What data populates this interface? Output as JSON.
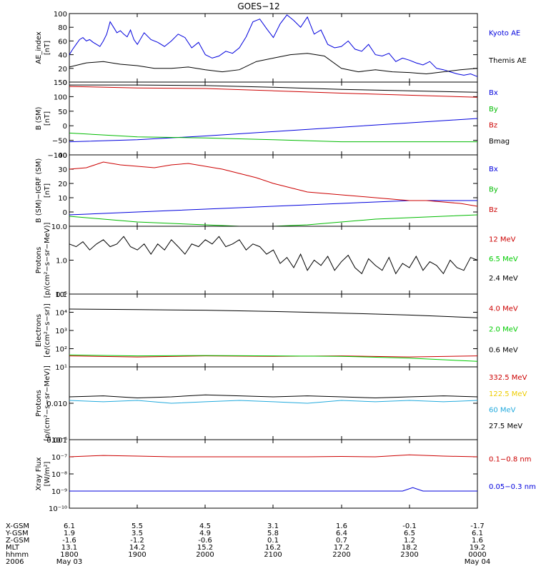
{
  "title": "GOES−12",
  "time_axis": {
    "range": [
      "2006-05-03 18:00",
      "2006-05-04 00:00"
    ],
    "ticks": [
      "1800",
      "1900",
      "2000",
      "2100",
      "2200",
      "2300",
      "0000"
    ]
  },
  "footer": {
    "rows": [
      {
        "label": "X-GSM",
        "values": [
          "6.1",
          "5.5",
          "4.5",
          "3.1",
          "1.6",
          "-0.1",
          "-1.7"
        ]
      },
      {
        "label": "Y-GSM",
        "values": [
          "1.9",
          "3.5",
          "4.9",
          "5.8",
          "6.4",
          "6.5",
          "6.1"
        ]
      },
      {
        "label": "Z-GSM",
        "values": [
          "-1.6",
          "-1.2",
          "-0.6",
          "0.1",
          "0.7",
          "1.2",
          "1.6"
        ]
      },
      {
        "label": "MLT",
        "values": [
          "13.1",
          "14.2",
          "15.2",
          "16.2",
          "17.2",
          "18.2",
          "19.2"
        ]
      },
      {
        "label": "hhmm",
        "values": [
          "1800",
          "1900",
          "2000",
          "2100",
          "2200",
          "2300",
          "0000"
        ]
      }
    ],
    "year": "2006",
    "date_start": "May 03",
    "date_end": "May 04"
  },
  "chart_data": [
    {
      "type": "line",
      "ylabel": [
        "AE_index",
        "[nT]"
      ],
      "scale": "linear",
      "ylim": [
        0,
        100
      ],
      "yticks": [
        "0",
        "20",
        "40",
        "60",
        "80",
        "100"
      ],
      "legend_placement": "right",
      "series": [
        {
          "name": "Kyoto AE",
          "color": "#0000dd",
          "x": [
            0,
            0.05,
            0.1,
            0.15,
            0.2,
            0.25,
            0.3,
            0.35,
            0.4,
            0.45,
            0.5,
            0.55,
            0.6,
            0.65,
            0.7,
            0.75,
            0.8,
            0.85,
            0.9,
            0.95,
            1.0,
            1.1,
            1.2,
            1.3,
            1.4,
            1.5,
            1.6,
            1.7,
            1.8,
            1.9,
            2.0,
            2.1,
            2.2,
            2.3,
            2.4,
            2.5,
            2.6,
            2.7,
            2.8,
            2.9,
            3.0,
            3.1,
            3.2,
            3.3,
            3.4,
            3.5,
            3.6,
            3.7,
            3.8,
            3.9,
            4.0,
            4.1,
            4.2,
            4.3,
            4.4,
            4.5,
            4.6,
            4.7,
            4.8,
            4.9,
            5.0,
            5.1,
            5.2,
            5.3,
            5.4,
            5.5,
            5.6,
            5.7,
            5.8,
            5.9,
            6.0
          ],
          "values": [
            40,
            48,
            55,
            62,
            65,
            60,
            62,
            58,
            55,
            52,
            60,
            70,
            88,
            80,
            72,
            75,
            70,
            66,
            76,
            62,
            55,
            72,
            62,
            58,
            52,
            60,
            70,
            65,
            50,
            58,
            40,
            35,
            38,
            45,
            42,
            50,
            66,
            88,
            92,
            78,
            65,
            85,
            98,
            90,
            80,
            95,
            70,
            76,
            55,
            50,
            52,
            60,
            48,
            45,
            55,
            40,
            38,
            42,
            30,
            35,
            32,
            28,
            25,
            30,
            20,
            18,
            15,
            12,
            10,
            12,
            8
          ]
        },
        {
          "name": "Themis AE",
          "color": "#000000",
          "x": [
            0,
            0.25,
            0.5,
            0.75,
            1.0,
            1.25,
            1.5,
            1.75,
            2.0,
            2.25,
            2.5,
            2.75,
            3.0,
            3.25,
            3.5,
            3.75,
            4.0,
            4.25,
            4.5,
            4.75,
            5.0,
            5.25,
            5.5,
            5.75,
            6.0
          ],
          "values": [
            22,
            28,
            30,
            26,
            24,
            20,
            20,
            22,
            18,
            15,
            18,
            30,
            35,
            40,
            42,
            38,
            20,
            15,
            18,
            15,
            14,
            12,
            15,
            18,
            20
          ]
        }
      ]
    },
    {
      "type": "line",
      "ylabel": [
        "B (SM)",
        "[nT]"
      ],
      "scale": "linear",
      "ylim": [
        -100,
        150
      ],
      "yticks": [
        "−100",
        "−50",
        "0",
        "50",
        "100",
        "150"
      ],
      "legend_placement": "right",
      "series": [
        {
          "name": "Bx",
          "color": "#0000dd",
          "x": [
            0,
            1,
            2,
            3,
            4,
            5,
            6
          ],
          "values": [
            -55,
            -48,
            -35,
            -20,
            -5,
            10,
            25
          ]
        },
        {
          "name": "By",
          "color": "#00bb00",
          "x": [
            0,
            1,
            2,
            3,
            4,
            5,
            6
          ],
          "values": [
            -25,
            -38,
            -42,
            -48,
            -55,
            -55,
            -55
          ]
        },
        {
          "name": "Bz",
          "color": "#cc0000",
          "x": [
            0,
            1,
            2,
            3,
            4,
            5,
            6
          ],
          "values": [
            135,
            130,
            128,
            120,
            112,
            105,
            98
          ]
        },
        {
          "name": "Bmag",
          "color": "#000000",
          "x": [
            0,
            1,
            2,
            3,
            4,
            5,
            6
          ],
          "values": [
            140,
            140,
            138,
            132,
            125,
            120,
            115
          ]
        }
      ]
    },
    {
      "type": "line",
      "ylabel": [
        "B (SM)−IGRF (SM)",
        "[nT]"
      ],
      "scale": "linear",
      "ylim": [
        -10,
        40
      ],
      "yticks": [
        "0",
        "10",
        "20",
        "30",
        "40"
      ],
      "legend_placement": "right",
      "series": [
        {
          "name": "Bx",
          "color": "#0000dd",
          "x": [
            0,
            0.5,
            1,
            1.5,
            2,
            2.5,
            3,
            3.5,
            4,
            4.5,
            5,
            5.5,
            6
          ],
          "values": [
            -2,
            -1,
            0,
            1,
            2,
            3,
            4,
            5,
            6,
            7,
            8,
            8,
            8
          ]
        },
        {
          "name": "By",
          "color": "#00bb00",
          "x": [
            0,
            0.5,
            1,
            1.5,
            2,
            2.5,
            3,
            3.5,
            4,
            4.5,
            5,
            5.5,
            6
          ],
          "values": [
            -3,
            -5,
            -7,
            -8,
            -9,
            -10,
            -10,
            -9,
            -7,
            -5,
            -4,
            -3,
            -2
          ]
        },
        {
          "name": "Bz",
          "color": "#cc0000",
          "x": [
            0,
            0.25,
            0.5,
            0.75,
            1,
            1.25,
            1.5,
            1.75,
            2,
            2.25,
            2.5,
            2.75,
            3,
            3.25,
            3.5,
            3.75,
            4,
            4.25,
            4.5,
            4.75,
            5,
            5.25,
            5.5,
            5.75,
            6
          ],
          "values": [
            30,
            31,
            35,
            33,
            32,
            31,
            33,
            34,
            32,
            30,
            27,
            24,
            20,
            17,
            14,
            13,
            12,
            11,
            10,
            9,
            8,
            8,
            7,
            6,
            4
          ]
        }
      ]
    },
    {
      "type": "line",
      "ylabel": [
        "Protons",
        "[p/(cm²−s−sr−MeV)]"
      ],
      "scale": "log",
      "ylim": [
        0.1,
        10
      ],
      "yticks": [
        "0.1",
        "1.0",
        "10.0"
      ],
      "legend_placement": "right",
      "series": [
        {
          "name": "12 MeV",
          "color": "#cc0000",
          "x": [],
          "values": []
        },
        {
          "name": "6.5 MeV",
          "color": "#00cc00",
          "x": [],
          "values": []
        },
        {
          "name": "2.4 MeV",
          "color": "#000000",
          "x": [
            0,
            0.1,
            0.2,
            0.3,
            0.4,
            0.5,
            0.6,
            0.7,
            0.8,
            0.9,
            1.0,
            1.1,
            1.2,
            1.3,
            1.4,
            1.5,
            1.6,
            1.7,
            1.8,
            1.9,
            2.0,
            2.1,
            2.2,
            2.3,
            2.4,
            2.5,
            2.6,
            2.7,
            2.8,
            2.9,
            3.0,
            3.1,
            3.2,
            3.3,
            3.4,
            3.5,
            3.6,
            3.7,
            3.8,
            3.9,
            4.0,
            4.1,
            4.2,
            4.3,
            4.4,
            4.5,
            4.6,
            4.7,
            4.8,
            4.9,
            5.0,
            5.1,
            5.2,
            5.3,
            5.4,
            5.5,
            5.6,
            5.7,
            5.8,
            5.9,
            6.0
          ],
          "values": [
            3,
            2.5,
            3.5,
            2,
            3,
            4,
            2.5,
            3,
            5,
            2.5,
            2,
            3,
            1.5,
            3,
            2,
            4,
            2.5,
            1.5,
            3,
            2.5,
            4,
            3,
            5,
            2.5,
            3,
            4,
            2,
            3,
            2.5,
            1.5,
            2,
            0.8,
            1.2,
            0.6,
            1.5,
            0.5,
            1,
            0.7,
            1.3,
            0.5,
            0.9,
            1.4,
            0.6,
            0.4,
            1.1,
            0.7,
            0.5,
            1.2,
            0.4,
            0.8,
            0.6,
            1.3,
            0.5,
            0.9,
            0.7,
            0.4,
            1.0,
            0.6,
            0.5,
            1.2,
            1.0
          ]
        }
      ]
    },
    {
      "type": "line",
      "ylabel": [
        "Electrons",
        "[e/(cm²−s−sr)]"
      ],
      "scale": "log",
      "ylim": [
        10,
        100000
      ],
      "yticks": [
        "10¹",
        "10²",
        "10³",
        "10⁴",
        "10⁵"
      ],
      "legend_placement": "right",
      "series": [
        {
          "name": "4.0 MeV",
          "color": "#cc0000",
          "x": [
            0,
            1,
            2,
            3,
            4,
            5,
            6
          ],
          "values": [
            40,
            35,
            40,
            38,
            40,
            35,
            40
          ]
        },
        {
          "name": "2.0 MeV",
          "color": "#00cc00",
          "x": [
            0,
            1,
            2,
            3,
            4,
            5,
            6
          ],
          "values": [
            45,
            40,
            42,
            40,
            38,
            30,
            20
          ]
        },
        {
          "name": "0.6 MeV",
          "color": "#000000",
          "x": [
            0,
            0.5,
            1,
            1.5,
            2,
            2.5,
            3,
            3.5,
            4,
            4.5,
            5,
            5.5,
            6
          ],
          "values": [
            15000,
            14500,
            14000,
            13500,
            13000,
            12000,
            11000,
            10000,
            9000,
            8000,
            7000,
            6000,
            5000
          ]
        }
      ]
    },
    {
      "type": "line",
      "ylabel": [
        "Protons",
        "[p/(cm²−s−sr−MeV)]"
      ],
      "scale": "log",
      "ylim": [
        0.001,
        0.1
      ],
      "yticks": [
        "0.001",
        "0.010"
      ],
      "legend_placement": "right",
      "series": [
        {
          "name": "332.5 MeV",
          "color": "#cc0000",
          "x": [],
          "values": []
        },
        {
          "name": "122.5 MeV",
          "color": "#eecc00",
          "x": [],
          "values": []
        },
        {
          "name": "60 MeV",
          "color": "#22aadd",
          "x": [
            0,
            0.5,
            1,
            1.5,
            2,
            2.5,
            3,
            3.5,
            4,
            4.5,
            5,
            5.5,
            6
          ],
          "values": [
            0.012,
            0.011,
            0.012,
            0.01,
            0.011,
            0.012,
            0.011,
            0.01,
            0.012,
            0.011,
            0.012,
            0.011,
            0.012
          ]
        },
        {
          "name": "27.5 MeV",
          "color": "#000000",
          "x": [
            0,
            0.5,
            1,
            1.5,
            2,
            2.5,
            3,
            3.5,
            4,
            4.5,
            5,
            5.5,
            6
          ],
          "values": [
            0.015,
            0.016,
            0.014,
            0.015,
            0.017,
            0.016,
            0.015,
            0.016,
            0.015,
            0.014,
            0.015,
            0.016,
            0.015
          ]
        }
      ]
    },
    {
      "type": "line",
      "ylabel": [
        "Xray Flux",
        "[W/m²]"
      ],
      "scale": "log",
      "ylim": [
        1e-10,
        1e-06
      ],
      "yticks": [
        "10⁻¹⁰",
        "10⁻⁹",
        "10⁻⁸",
        "10⁻⁷",
        "10⁻⁶"
      ],
      "legend_placement": "right",
      "series": [
        {
          "name": "0.1−0.8 nm",
          "color": "#cc0000",
          "x": [
            0,
            0.5,
            1,
            1.5,
            2,
            2.5,
            3,
            3.5,
            4,
            4.5,
            5,
            5.5,
            6
          ],
          "values": [
            1e-07,
            1.2e-07,
            1.1e-07,
            1e-07,
            1e-07,
            1e-07,
            1e-07,
            1e-07,
            1.05e-07,
            1e-07,
            1.3e-07,
            1.1e-07,
            1e-07
          ]
        },
        {
          "name": "0.05−0.3 nm",
          "color": "#0000dd",
          "x": [
            0,
            0.5,
            1,
            1.5,
            2,
            2.5,
            3,
            3.5,
            4,
            4.5,
            4.9,
            5.05,
            5.2,
            5.5,
            6
          ],
          "values": [
            1e-09,
            1e-09,
            1e-09,
            1e-09,
            1e-09,
            1e-09,
            1e-09,
            1e-09,
            1e-09,
            1e-09,
            1e-09,
            1.6e-09,
            1e-09,
            1e-09,
            1e-09
          ]
        }
      ]
    }
  ]
}
